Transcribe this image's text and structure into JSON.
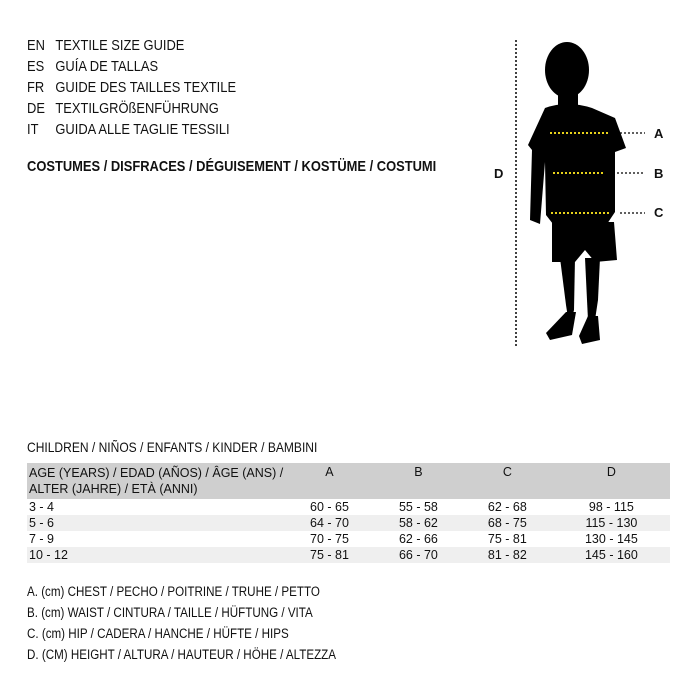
{
  "guide_titles": [
    {
      "code": "EN",
      "text": "TEXTILE SIZE GUIDE"
    },
    {
      "code": "ES",
      "text": "GUÍA DE TALLAS"
    },
    {
      "code": "FR",
      "text": "GUIDE DES TAILLES TEXTILE"
    },
    {
      "code": "DE",
      "text": "TEXTILGRÖßENFÜHRUNG"
    },
    {
      "code": "IT",
      "text": "GUIDA ALLE TAGLIE TESSILI"
    }
  ],
  "category_title": "COSTUMES / DISFRACES / DÉGUISEMENT / KOSTÜME / COSTUMI",
  "figure": {
    "labels": {
      "a": "A",
      "b": "B",
      "c": "C",
      "d": "D"
    },
    "silhouette_color": "#000000",
    "marker_color": "#e8d21a"
  },
  "table": {
    "caption": "CHILDREN / NIÑOS / ENFANTS / KINDER / BAMBINI",
    "headers": [
      "AGE (YEARS) / EDAD (AÑOS) / ÂGE (ANS) / ALTER (JAHRE) / ETÀ (ANNI)",
      "A",
      "B",
      "C",
      "D"
    ],
    "rows": [
      [
        "3 - 4",
        "60 - 65",
        "55 - 58",
        "62 - 68",
        "98 - 115"
      ],
      [
        "5 - 6",
        "64 - 70",
        "58 - 62",
        "68 - 75",
        "115 - 130"
      ],
      [
        "7 - 9",
        "70 - 75",
        "62 - 66",
        "75 - 81",
        "130 - 145"
      ],
      [
        "10 - 12",
        "75 - 81",
        "66 - 70",
        "81 - 82",
        "145 - 160"
      ]
    ]
  },
  "legend": [
    "A. (cm) CHEST / PECHO / POITRINE / TRUHE / PETTO",
    "B. (cm) WAIST / CINTURA / TAILLE / HÜFTUNG / VITA",
    "C. (cm) HIP / CADERA / HANCHE / HÜFTE / HIPS",
    "D. (CM) HEIGHT / ALTURA / HAUTEUR / HÖHE / ALTEZZA"
  ]
}
